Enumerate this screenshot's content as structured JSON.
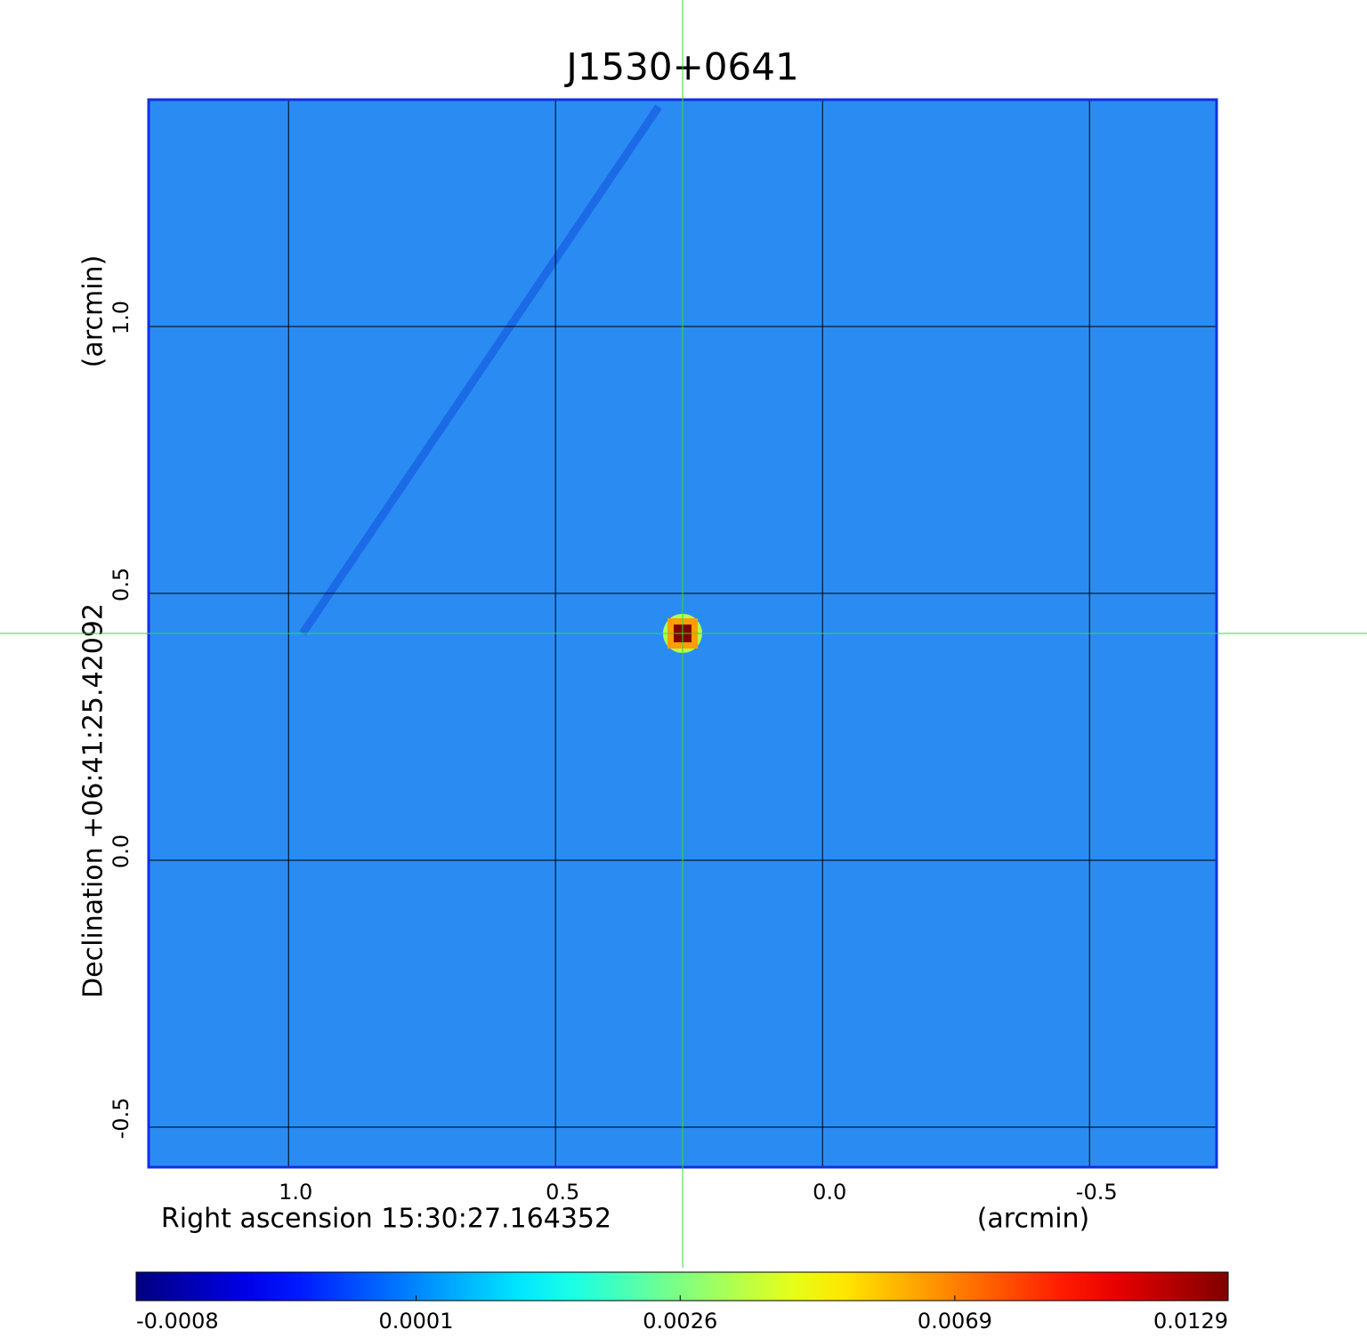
{
  "chart_data": {
    "type": "image",
    "title": "J1530+0641",
    "xlabel": "Right ascension  15:30:27.164352",
    "xunit": "(arcmin)",
    "ylabel": "Declination  +06:41:25.42092",
    "yunit": "(arcmin)",
    "xlim": [
      1.262,
      -0.738
    ],
    "ylim": [
      -0.575,
      1.425
    ],
    "xticks": [
      {
        "value": 1,
        "label": "1.0"
      },
      0.5,
      {
        "value": 0,
        "label": "0.0"
      },
      -0.5
    ],
    "yticks": [
      {
        "value": 1,
        "label": "1.0"
      },
      0.5,
      {
        "value": 0,
        "label": "0.0"
      },
      -0.5
    ],
    "grid": true,
    "background_color": "#2a8cf2",
    "frame_color": "#1030e0",
    "title_color": "#1414dc",
    "crosshair": {
      "x": 0.262,
      "y": 0.425,
      "color": "#33dd33"
    },
    "source": {
      "x": 0.262,
      "y": 0.425,
      "peak": 0.0129
    },
    "colorbar": {
      "colormap": "jet",
      "scale": "sqrt",
      "lim": [
        -0.0008,
        0.0129
      ],
      "ticks": [
        -0.0008,
        0.0001,
        0.0026,
        0.0069,
        0.0129
      ]
    }
  }
}
